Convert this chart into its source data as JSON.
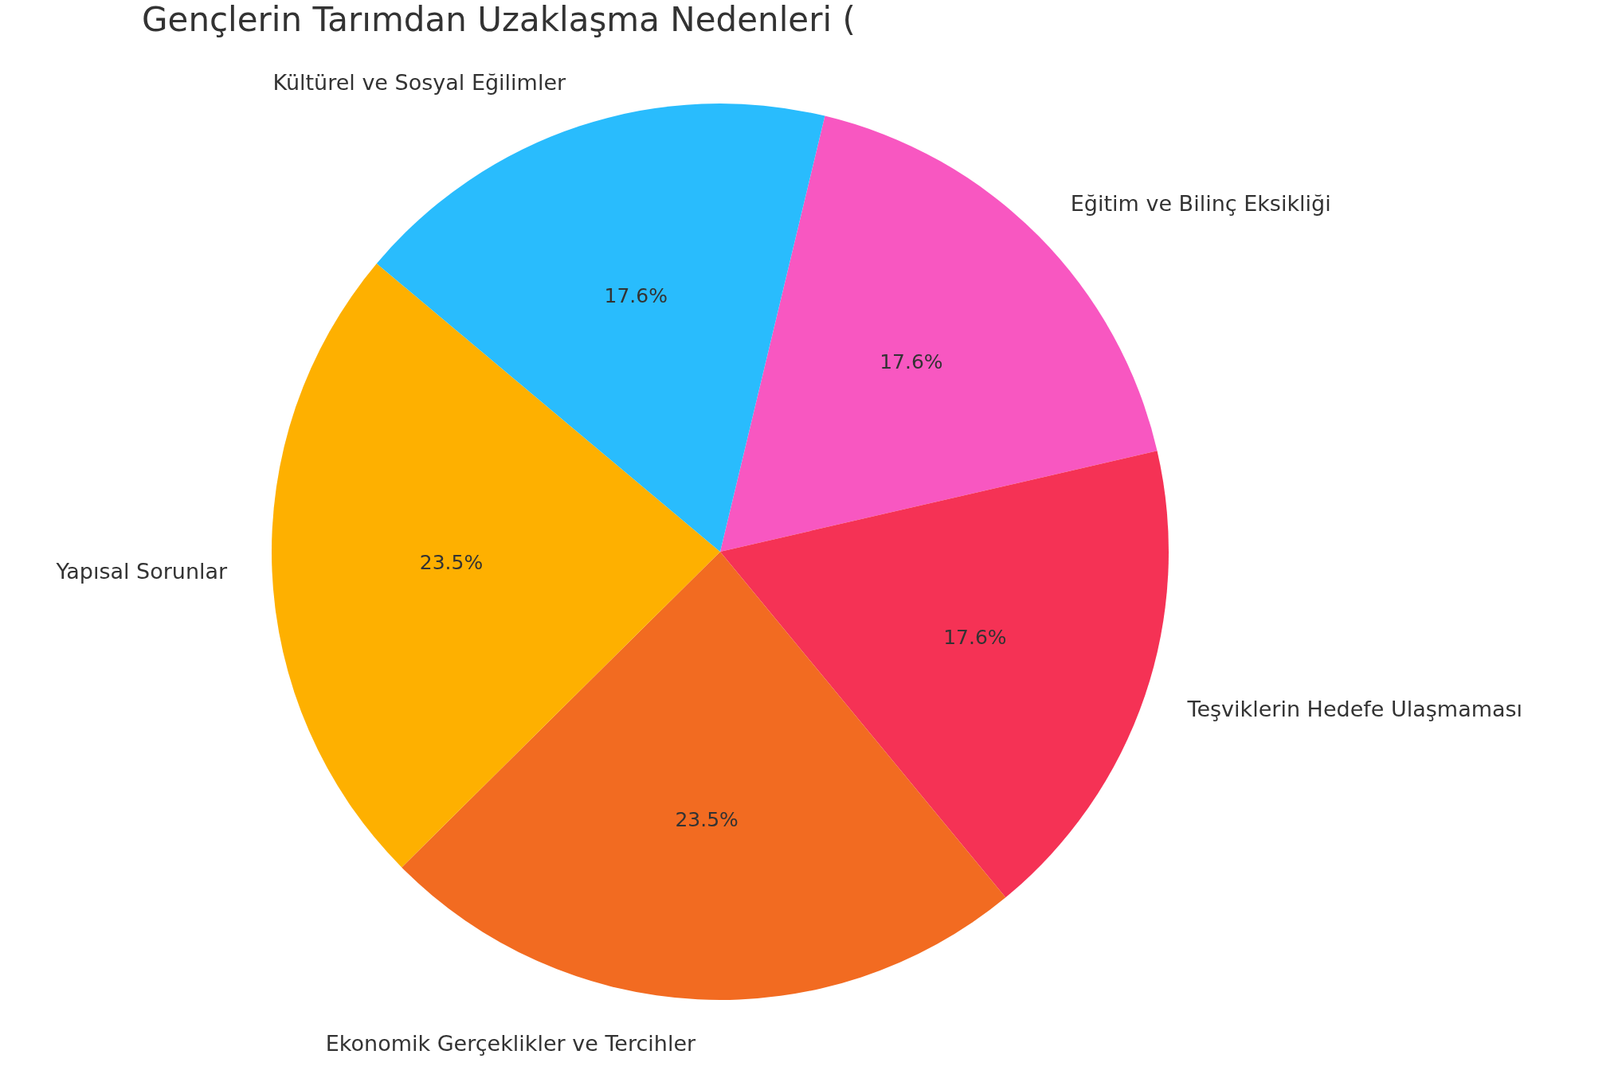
{
  "chart_data": {
    "type": "pie",
    "title": "Gençlerin Tarımdan Uzaklaşma Nedenleri (",
    "categories": [
      "Eğitim ve Bilinç Eksikliği",
      "Teşviklerin Hedefe Ulaşmaması",
      "Ekonomik Gerçeklikler ve Tercihler",
      "Yapısal Sorunlar",
      "Kültürel ve Sosyal Eğilimler"
    ],
    "values": [
      17.6,
      17.6,
      23.5,
      23.5,
      17.6
    ],
    "value_labels": [
      "17.6%",
      "17.6%",
      "23.5%",
      "23.5%",
      "17.6%"
    ],
    "colors": [
      "#f857c1",
      "#f53255",
      "#f26b21",
      "#feb000",
      "#29bcfd"
    ]
  }
}
